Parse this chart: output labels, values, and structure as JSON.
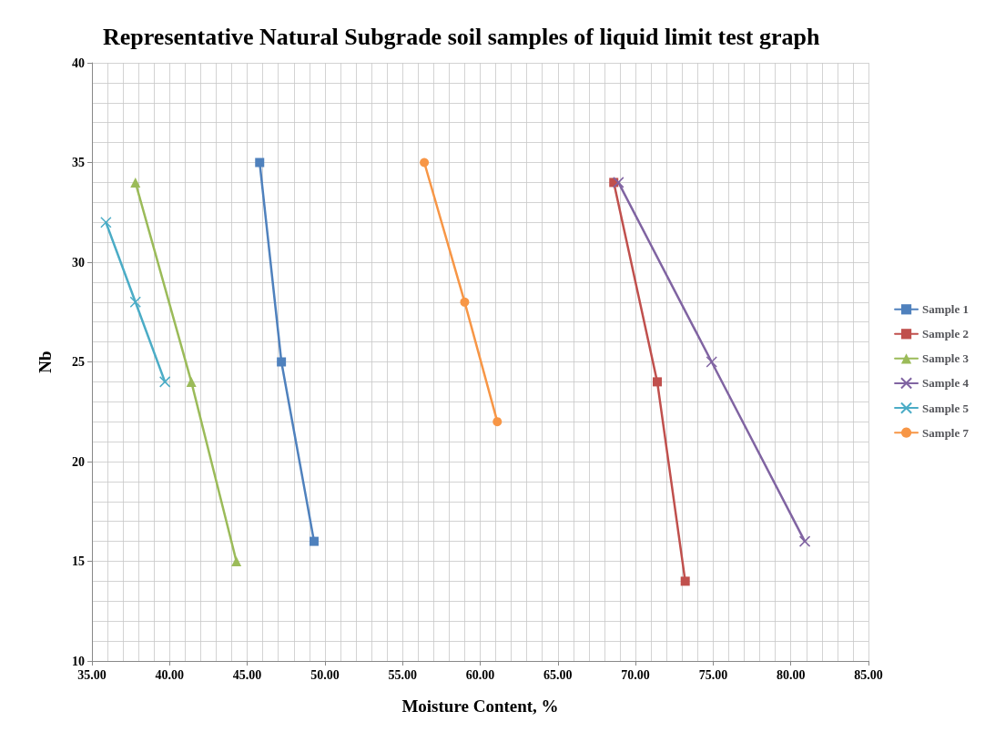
{
  "chart_data": {
    "type": "line",
    "title": "Representative Natural Subgrade soil samples of liquid limit test graph",
    "xlabel": "Moisture Content, %",
    "ylabel": "Nb",
    "xlim": [
      35,
      85
    ],
    "xticks": [
      {
        "value": 35,
        "label": "35.00"
      },
      {
        "value": 40,
        "label": "40.00"
      },
      {
        "value": 45,
        "label": "45.00"
      },
      {
        "value": 50,
        "label": "50.00"
      },
      {
        "value": 55,
        "label": "55.00"
      },
      {
        "value": 60,
        "label": "60.00"
      },
      {
        "value": 65,
        "label": "65.00"
      },
      {
        "value": 70,
        "label": "70.00"
      },
      {
        "value": 75,
        "label": "75.00"
      },
      {
        "value": 80,
        "label": "80.00"
      },
      {
        "value": 85,
        "label": "85.00"
      }
    ],
    "ylim": [
      10,
      40
    ],
    "yticks": [
      10,
      15,
      20,
      25,
      30,
      35,
      40
    ],
    "grid": true,
    "legend": "right",
    "line_style": "solid",
    "series": [
      {
        "name": "Sample 1",
        "color": "#4f81bd",
        "marker": "square",
        "x": [
          45.8,
          47.2,
          49.3
        ],
        "values": [
          35,
          25,
          16
        ]
      },
      {
        "name": "Sample 2",
        "color": "#c0504d",
        "marker": "square",
        "x": [
          68.6,
          71.4,
          73.2
        ],
        "values": [
          34,
          24,
          14
        ]
      },
      {
        "name": "Sample 3",
        "color": "#9bbb59",
        "marker": "triangle",
        "x": [
          37.8,
          41.4,
          44.3
        ],
        "values": [
          34,
          24,
          15
        ]
      },
      {
        "name": "Sample 4",
        "color": "#8064a2",
        "marker": "cross",
        "x": [
          68.9,
          74.9,
          80.9
        ],
        "values": [
          34,
          25,
          16
        ]
      },
      {
        "name": "Sample 5",
        "color": "#4bacc6",
        "marker": "cross",
        "x": [
          35.9,
          37.8,
          39.7
        ],
        "values": [
          32,
          28,
          24
        ]
      },
      {
        "name": "Sample 7",
        "color": "#f79646",
        "marker": "circle",
        "x": [
          56.4,
          59.0,
          61.1
        ],
        "values": [
          35,
          28,
          22
        ]
      }
    ]
  }
}
